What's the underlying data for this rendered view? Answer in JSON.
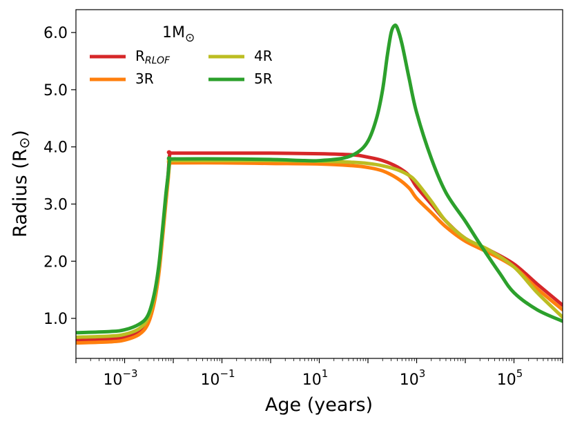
{
  "chart_data": {
    "type": "line",
    "xscale": "log",
    "xlim": [
      0.0001,
      1000000
    ],
    "ylim": [
      0.3,
      6.4
    ],
    "xlabel": "Age (years)",
    "ylabel": "Radius (R⊙)",
    "ylabel_main": "Radius (R",
    "ylabel_sun": "⊙",
    "ylabel_close": ")",
    "legend_title": "1M",
    "legend_title_sun": "⊙",
    "legend_position": "top-left",
    "grid": false,
    "xticks": [
      {
        "value": 0.001,
        "base": "10",
        "exp": "−3"
      },
      {
        "value": 0.1,
        "base": "10",
        "exp": "−1"
      },
      {
        "value": 10,
        "base": "10",
        "exp": "1"
      },
      {
        "value": 1000,
        "base": "10",
        "exp": "3"
      },
      {
        "value": 100000,
        "base": "10",
        "exp": "5"
      }
    ],
    "yticks": [
      {
        "value": 1.0,
        "label": "1.0"
      },
      {
        "value": 2.0,
        "label": "2.0"
      },
      {
        "value": 3.0,
        "label": "3.0"
      },
      {
        "value": 4.0,
        "label": "4.0"
      },
      {
        "value": 5.0,
        "label": "5.0"
      },
      {
        "value": 6.0,
        "label": "6.0"
      }
    ],
    "series": [
      {
        "name": "R",
        "name_sub": "RLOF",
        "color": "#d62728",
        "points": [
          [
            0.0001,
            0.62
          ],
          [
            0.0005,
            0.64
          ],
          [
            0.001,
            0.68
          ],
          [
            0.002,
            0.78
          ],
          [
            0.003,
            0.95
          ],
          [
            0.004,
            1.3
          ],
          [
            0.005,
            1.8
          ],
          [
            0.006,
            2.5
          ],
          [
            0.007,
            3.1
          ],
          [
            0.0078,
            3.5
          ],
          [
            0.0085,
            3.88
          ],
          [
            0.01,
            3.89
          ],
          [
            0.1,
            3.89
          ],
          [
            1,
            3.89
          ],
          [
            10,
            3.88
          ],
          [
            50,
            3.86
          ],
          [
            100,
            3.82
          ],
          [
            200,
            3.76
          ],
          [
            400,
            3.65
          ],
          [
            700,
            3.5
          ],
          [
            1000,
            3.3
          ],
          [
            2000,
            3.0
          ],
          [
            4000,
            2.7
          ],
          [
            10000,
            2.4
          ],
          [
            30000,
            2.2
          ],
          [
            100000,
            1.95
          ],
          [
            300000,
            1.6
          ],
          [
            1000000,
            1.23
          ]
        ]
      },
      {
        "name": "3R",
        "color": "#ff7f0e",
        "points": [
          [
            0.0001,
            0.57
          ],
          [
            0.0005,
            0.59
          ],
          [
            0.001,
            0.62
          ],
          [
            0.002,
            0.72
          ],
          [
            0.003,
            0.9
          ],
          [
            0.004,
            1.25
          ],
          [
            0.005,
            1.75
          ],
          [
            0.006,
            2.4
          ],
          [
            0.007,
            3.0
          ],
          [
            0.0078,
            3.4
          ],
          [
            0.0085,
            3.72
          ],
          [
            0.01,
            3.72
          ],
          [
            0.1,
            3.72
          ],
          [
            1,
            3.71
          ],
          [
            10,
            3.7
          ],
          [
            50,
            3.67
          ],
          [
            100,
            3.64
          ],
          [
            200,
            3.58
          ],
          [
            400,
            3.45
          ],
          [
            700,
            3.28
          ],
          [
            1000,
            3.1
          ],
          [
            2000,
            2.85
          ],
          [
            4000,
            2.6
          ],
          [
            10000,
            2.35
          ],
          [
            30000,
            2.15
          ],
          [
            100000,
            1.9
          ],
          [
            300000,
            1.52
          ],
          [
            1000000,
            1.15
          ]
        ]
      },
      {
        "name": "4R",
        "color": "#bcbd22",
        "points": [
          [
            0.0001,
            0.67
          ],
          [
            0.0005,
            0.69
          ],
          [
            0.001,
            0.72
          ],
          [
            0.002,
            0.82
          ],
          [
            0.003,
            1.0
          ],
          [
            0.004,
            1.35
          ],
          [
            0.005,
            1.85
          ],
          [
            0.006,
            2.5
          ],
          [
            0.007,
            3.1
          ],
          [
            0.0078,
            3.45
          ],
          [
            0.0085,
            3.75
          ],
          [
            0.01,
            3.76
          ],
          [
            0.1,
            3.76
          ],
          [
            1,
            3.76
          ],
          [
            10,
            3.75
          ],
          [
            50,
            3.73
          ],
          [
            100,
            3.71
          ],
          [
            200,
            3.67
          ],
          [
            400,
            3.6
          ],
          [
            700,
            3.5
          ],
          [
            1000,
            3.38
          ],
          [
            2000,
            3.05
          ],
          [
            4000,
            2.7
          ],
          [
            10000,
            2.4
          ],
          [
            30000,
            2.2
          ],
          [
            100000,
            1.9
          ],
          [
            300000,
            1.45
          ],
          [
            1000000,
            1.02
          ]
        ]
      },
      {
        "name": "5R",
        "color": "#2ca02c",
        "points": [
          [
            0.0001,
            0.75
          ],
          [
            0.0005,
            0.77
          ],
          [
            0.001,
            0.8
          ],
          [
            0.002,
            0.9
          ],
          [
            0.003,
            1.05
          ],
          [
            0.004,
            1.4
          ],
          [
            0.005,
            1.9
          ],
          [
            0.006,
            2.55
          ],
          [
            0.007,
            3.15
          ],
          [
            0.0078,
            3.5
          ],
          [
            0.0085,
            3.78
          ],
          [
            0.01,
            3.79
          ],
          [
            0.1,
            3.79
          ],
          [
            1,
            3.78
          ],
          [
            5,
            3.76
          ],
          [
            10,
            3.76
          ],
          [
            30,
            3.8
          ],
          [
            60,
            3.9
          ],
          [
            100,
            4.1
          ],
          [
            150,
            4.5
          ],
          [
            200,
            5.0
          ],
          [
            250,
            5.6
          ],
          [
            300,
            6.0
          ],
          [
            350,
            6.12
          ],
          [
            400,
            6.08
          ],
          [
            500,
            5.8
          ],
          [
            700,
            5.2
          ],
          [
            1000,
            4.6
          ],
          [
            2000,
            3.8
          ],
          [
            4000,
            3.2
          ],
          [
            10000,
            2.7
          ],
          [
            20000,
            2.3
          ],
          [
            50000,
            1.8
          ],
          [
            100000,
            1.45
          ],
          [
            300000,
            1.15
          ],
          [
            1000000,
            0.95
          ]
        ]
      }
    ]
  }
}
